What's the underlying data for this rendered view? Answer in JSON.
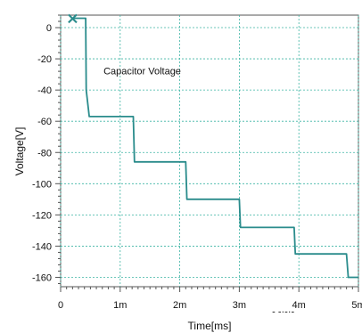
{
  "chart_data": {
    "type": "line",
    "title": "",
    "xlabel": "Time[ms]",
    "ylabel": "Voltage[V]",
    "xlim": [
      0,
      5
    ],
    "ylim": [
      -166,
      8
    ],
    "x_ticks": [
      0,
      1,
      2,
      3,
      4,
      5
    ],
    "x_tick_labels": [
      "0",
      "1m",
      "2m",
      "3m",
      "4m",
      "5m"
    ],
    "y_ticks": [
      0,
      -20,
      -40,
      -60,
      -80,
      -100,
      -120,
      -140,
      -160
    ],
    "y_tick_labels": [
      "0",
      "-20",
      "-40",
      "-60",
      "-80",
      "-100",
      "-120",
      "-140",
      "-160"
    ],
    "grid": true,
    "series": [
      {
        "name": "Capacitor Voltage",
        "color": "#2a8c8c",
        "x": [
          0.2,
          0.42,
          0.43,
          0.48,
          1.18,
          1.22,
          1.24,
          2.08,
          2.1,
          2.12,
          2.97,
          3.0,
          3.02,
          3.9,
          3.92,
          3.94,
          4.78,
          4.8,
          4.83,
          5.0
        ],
        "y": [
          6,
          6,
          -40,
          -57,
          -57,
          -57,
          -86,
          -86,
          -86,
          -110,
          -110,
          -110,
          -128,
          -128,
          -128,
          -145,
          -145,
          -145,
          -160,
          -160
        ]
      }
    ],
    "annotations": [
      {
        "text": "Capacitor Voltage",
        "x": 0.72,
        "y": -30
      },
      {
        "text": "- -·-·-",
        "x": 3.55,
        "y": -184
      }
    ],
    "marker": {
      "symbol": "×",
      "x": 0.2,
      "y": 6,
      "color": "#2a8c8c"
    }
  }
}
